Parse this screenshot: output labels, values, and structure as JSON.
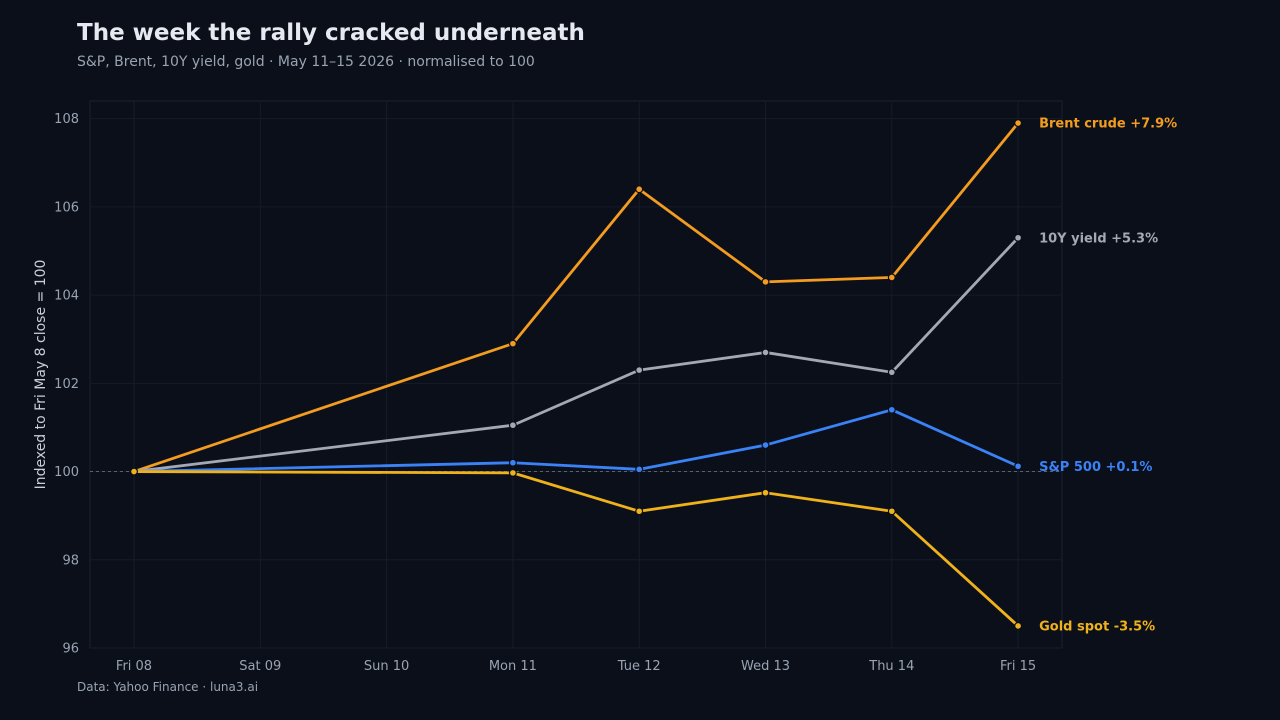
{
  "header": {
    "title": "The week the rally cracked underneath",
    "subtitle": "S&P, Brent, 10Y yield, gold · May 11–15 2026 · normalised to 100"
  },
  "footer": {
    "source": "Data: Yahoo Finance · luna3.ai"
  },
  "chart_data": {
    "type": "line",
    "title": "The week the rally cracked underneath",
    "subtitle": "S&P, Brent, 10Y yield, gold · May 11–15 2026 · normalised to 100",
    "xlabel": "",
    "ylabel": "Indexed to Fri May 8 close = 100",
    "categories": [
      "Fri 08",
      "Sat 09",
      "Sun 10",
      "Mon 11",
      "Tue 12",
      "Wed 13",
      "Thu 14",
      "Fri 15"
    ],
    "ylim": [
      96,
      108.4
    ],
    "yticks": [
      96,
      98,
      100,
      102,
      104,
      106,
      108
    ],
    "baseline": 100,
    "grid": true,
    "legend": "direct labels at line ends (right)",
    "series": [
      {
        "name": "Brent crude",
        "end_label": "Brent crude  +7.9%",
        "color": "#f39c1f",
        "x": [
          "Fri 08",
          "Mon 11",
          "Tue 12",
          "Wed 13",
          "Thu 14",
          "Fri 15"
        ],
        "values": [
          100,
          102.9,
          106.4,
          104.3,
          104.4,
          107.9
        ]
      },
      {
        "name": "10Y yield",
        "end_label": "10Y yield  +5.3%",
        "color": "#a3a9b4",
        "x": [
          "Fri 08",
          "Mon 11",
          "Tue 12",
          "Wed 13",
          "Thu 14",
          "Fri 15"
        ],
        "values": [
          100,
          101.05,
          102.3,
          102.7,
          102.25,
          105.3
        ]
      },
      {
        "name": "S&P 500",
        "end_label": "S&P 500  +0.1%",
        "color": "#3b82f6",
        "x": [
          "Fri 08",
          "Mon 11",
          "Tue 12",
          "Wed 13",
          "Thu 14",
          "Fri 15"
        ],
        "values": [
          100,
          100.2,
          100.05,
          100.6,
          101.4,
          100.12
        ]
      },
      {
        "name": "Gold spot",
        "end_label": "Gold spot  -3.5%",
        "color": "#f0b21a",
        "x": [
          "Fri 08",
          "Mon 11",
          "Tue 12",
          "Wed 13",
          "Thu 14",
          "Fri 15"
        ],
        "values": [
          100,
          99.97,
          99.1,
          99.52,
          99.1,
          96.5
        ]
      }
    ]
  }
}
